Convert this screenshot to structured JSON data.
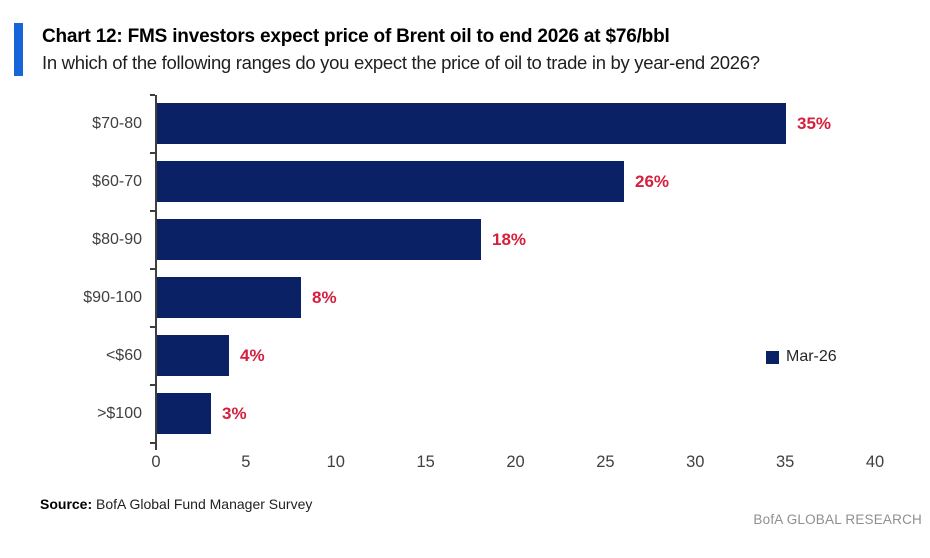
{
  "header": {
    "title": "Chart 12: FMS investors expect price of Brent oil to end 2026 at $76/bbl",
    "subtitle": "In which of the following ranges do you expect the price of oil to trade in by year-end 2026?",
    "accent_color": "#1766d9"
  },
  "chart_data": {
    "type": "bar",
    "orientation": "horizontal",
    "title": "Chart 12: FMS investors expect price of Brent oil to end 2026 at $76/bbl",
    "subtitle": "In which of the following ranges do you expect the price of oil to trade in by year-end 2026?",
    "categories": [
      "$70-80",
      "$60-70",
      "$80-90",
      "$90-100",
      "<$60",
      ">$100"
    ],
    "series": [
      {
        "name": "Mar-26",
        "values": [
          35,
          26,
          18,
          8,
          4,
          3
        ]
      }
    ],
    "value_labels": [
      "35%",
      "26%",
      "18%",
      "8%",
      "4%",
      "3%"
    ],
    "x_ticks": [
      0,
      5,
      10,
      15,
      20,
      25,
      30,
      35,
      40
    ],
    "xlim": [
      0,
      40
    ],
    "xlabel": "",
    "ylabel": "",
    "grid": false,
    "bar_color": "#0a2166",
    "value_label_color": "#d41f3d",
    "axis_color": "#3f3f3f",
    "legend": {
      "label": "Mar-26",
      "position": "middle-right"
    }
  },
  "footer": {
    "source_label": "Source:",
    "source_text": " BofA Global Fund Manager Survey",
    "brand": "BofA GLOBAL RESEARCH"
  }
}
